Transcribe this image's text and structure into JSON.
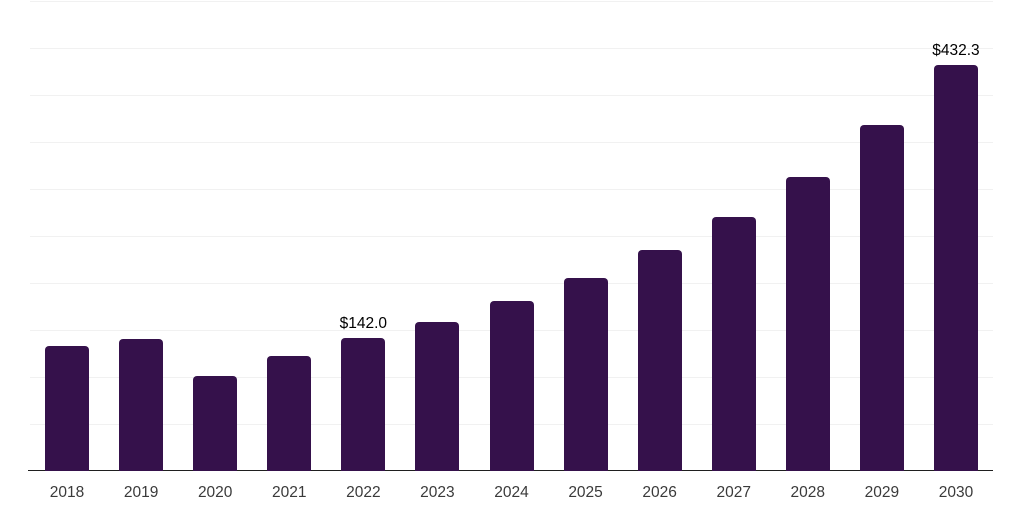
{
  "chart_data": {
    "type": "bar",
    "title": "",
    "xlabel": "",
    "ylabel": "",
    "categories": [
      "2018",
      "2019",
      "2020",
      "2021",
      "2022",
      "2023",
      "2024",
      "2025",
      "2026",
      "2027",
      "2028",
      "2029",
      "2030"
    ],
    "values": [
      133,
      140,
      101,
      122,
      142.0,
      159,
      181,
      205,
      235,
      270,
      313,
      368,
      432.3
    ],
    "value_labels": {
      "2022": "$142.0",
      "2030": "$432.3"
    },
    "ylim": [
      0,
      500
    ],
    "y_axis_labels_visible": false,
    "grid": "horizontal",
    "gridline_step_value": 50,
    "legend": "none",
    "bar_color": "#35114B",
    "gridline_color": "#f1f1f1",
    "axis_line_color": "#1f1f1f",
    "tick_label_color": "#3a3a3a",
    "value_label_color": "#000000"
  }
}
